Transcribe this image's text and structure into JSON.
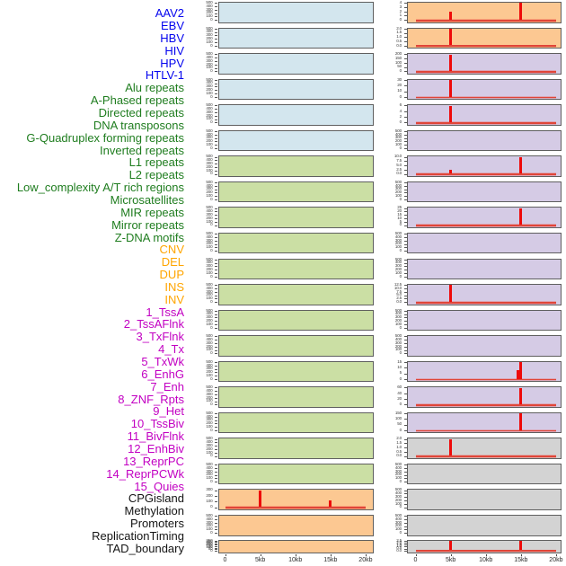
{
  "figure": {
    "description": "Small-multiple density profiles of genomic features, 22 rows x 2 columns",
    "x_axis": {
      "tick_labels": [
        "0",
        "5kb",
        "10kb",
        "15kb",
        "20kb"
      ],
      "range_kb": [
        0,
        20
      ]
    },
    "categories": {
      "virus": {
        "label_color": "#0404ee",
        "panel_color": "#d3e6ee"
      },
      "repeats": {
        "label_color": "#1f7d1f",
        "panel_color": "#cbdfa4"
      },
      "sv": {
        "label_color": "#ffa500",
        "panel_color": "#fcc892"
      },
      "chromatin": {
        "label_color": "#c200c2",
        "panel_color": "#d5cbe5"
      },
      "other": {
        "label_color": "#141414",
        "panel_color": "#d3d3d3"
      }
    },
    "trace_colors": {
      "spike": "#ee0a0a",
      "baseline": "#e04538"
    }
  },
  "chart_data": {
    "type": "line",
    "layout": "small-multiples, 22 rows x 2 columns, column-major feature order",
    "x_range_kb": [
      0,
      20
    ],
    "x_ticks": [
      "0",
      "5kb",
      "10kb",
      "15kb",
      "20kb"
    ],
    "note": "Panels without spikes show an empty default axis (ticks 500-0). Spikes are narrow red peaks on a flat red baseline at y=0.",
    "panels": [
      {
        "label": "AAV2",
        "category": "virus",
        "y_ticks": [
          "500",
          "400",
          "300",
          "200",
          "100",
          "0"
        ],
        "baseline": false,
        "spikes": []
      },
      {
        "label": "EBV",
        "category": "virus",
        "y_ticks": [
          "500",
          "400",
          "300",
          "200",
          "100",
          "0"
        ],
        "baseline": false,
        "spikes": []
      },
      {
        "label": "HBV",
        "category": "virus",
        "y_ticks": [
          "500",
          "400",
          "300",
          "200",
          "100",
          "0"
        ],
        "baseline": false,
        "spikes": []
      },
      {
        "label": "HIV",
        "category": "virus",
        "y_ticks": [
          "500",
          "400",
          "300",
          "200",
          "100",
          "0"
        ],
        "baseline": false,
        "spikes": []
      },
      {
        "label": "HPV",
        "category": "virus",
        "y_ticks": [
          "500",
          "400",
          "300",
          "200",
          "100",
          "0"
        ],
        "baseline": false,
        "spikes": []
      },
      {
        "label": "HTLV-1",
        "category": "virus",
        "y_ticks": [
          "500",
          "400",
          "300",
          "200",
          "100",
          "0"
        ],
        "baseline": false,
        "spikes": []
      },
      {
        "label": "Alu repeats",
        "category": "repeats",
        "y_ticks": [
          "500",
          "400",
          "300",
          "200",
          "100",
          "0"
        ],
        "baseline": false,
        "spikes": []
      },
      {
        "label": "A-Phased repeats",
        "category": "repeats",
        "y_ticks": [
          "500",
          "400",
          "300",
          "200",
          "100",
          "0"
        ],
        "baseline": false,
        "spikes": []
      },
      {
        "label": "Directed repeats",
        "category": "repeats",
        "y_ticks": [
          "500",
          "400",
          "300",
          "200",
          "100",
          "0"
        ],
        "baseline": false,
        "spikes": []
      },
      {
        "label": "DNA transposons",
        "category": "repeats",
        "y_ticks": [
          "500",
          "400",
          "300",
          "200",
          "100",
          "0"
        ],
        "baseline": false,
        "spikes": []
      },
      {
        "label": "G-Quadruplex forming repeats",
        "category": "repeats",
        "y_ticks": [
          "500",
          "400",
          "300",
          "200",
          "100",
          "0"
        ],
        "baseline": false,
        "spikes": []
      },
      {
        "label": "Inverted repeats",
        "category": "repeats",
        "y_ticks": [
          "500",
          "400",
          "300",
          "200",
          "100",
          "0"
        ],
        "baseline": false,
        "spikes": []
      },
      {
        "label": "L1 repeats",
        "category": "repeats",
        "y_ticks": [
          "500",
          "400",
          "300",
          "200",
          "100",
          "0"
        ],
        "baseline": false,
        "spikes": []
      },
      {
        "label": "L2 repeats",
        "category": "repeats",
        "y_ticks": [
          "500",
          "400",
          "300",
          "200",
          "100",
          "0"
        ],
        "baseline": false,
        "spikes": []
      },
      {
        "label": "Low_complexity A/T rich regions",
        "category": "repeats",
        "y_ticks": [
          "500",
          "400",
          "300",
          "200",
          "100",
          "0"
        ],
        "baseline": false,
        "spikes": []
      },
      {
        "label": "Microsatellites",
        "category": "repeats",
        "y_ticks": [
          "500",
          "400",
          "300",
          "200",
          "100",
          "0"
        ],
        "baseline": false,
        "spikes": []
      },
      {
        "label": "MIR repeats",
        "category": "repeats",
        "y_ticks": [
          "500",
          "400",
          "300",
          "200",
          "100",
          "0"
        ],
        "baseline": false,
        "spikes": []
      },
      {
        "label": "Mirror repeats",
        "category": "repeats",
        "y_ticks": [
          "500",
          "400",
          "300",
          "200",
          "100",
          "0"
        ],
        "baseline": false,
        "spikes": []
      },
      {
        "label": "Z-DNA motifs",
        "category": "repeats",
        "y_ticks": [
          "500",
          "400",
          "300",
          "200",
          "100",
          "0"
        ],
        "baseline": false,
        "spikes": []
      },
      {
        "label": "CNV",
        "category": "sv",
        "y_ticks": [
          "300",
          "200",
          "100",
          "0"
        ],
        "baseline": true,
        "spikes": [
          {
            "x_kb": 5,
            "value": 350,
            "frac": 1.0
          },
          {
            "x_kb": 15,
            "value": 130,
            "frac": 0.38
          }
        ]
      },
      {
        "label": "DEL",
        "category": "sv",
        "y_ticks": [
          "500",
          "400",
          "300",
          "200",
          "100",
          "0"
        ],
        "baseline": false,
        "spikes": []
      },
      {
        "label": "DUP",
        "category": "sv",
        "y_ticks": [
          "350",
          "300",
          "250",
          "200",
          "150",
          "100",
          "50",
          "0"
        ],
        "baseline": false,
        "spikes": []
      },
      {
        "label": "INS",
        "category": "sv",
        "y_ticks": [
          "4",
          "3",
          "2",
          "1",
          "0"
        ],
        "baseline": true,
        "spikes": [
          {
            "x_kb": 5,
            "value": 2.2,
            "frac": 0.5
          },
          {
            "x_kb": 15,
            "value": 4.4,
            "frac": 1.0
          }
        ]
      },
      {
        "label": "INV",
        "category": "sv",
        "y_ticks": [
          "2.0",
          "1.5",
          "1.0",
          "0.5",
          "0.0"
        ],
        "baseline": true,
        "spikes": [
          {
            "x_kb": 5,
            "value": 2.1,
            "frac": 1.0
          }
        ]
      },
      {
        "label": "1_TssA",
        "category": "chromatin",
        "y_ticks": [
          "200",
          "150",
          "100",
          "50",
          "0"
        ],
        "baseline": true,
        "spikes": [
          {
            "x_kb": 5,
            "value": 210,
            "frac": 1.0
          }
        ]
      },
      {
        "label": "2_TssAFlnk",
        "category": "chromatin",
        "y_ticks": [
          "30",
          "20",
          "10",
          "0"
        ],
        "baseline": true,
        "spikes": [
          {
            "x_kb": 5,
            "value": 32,
            "frac": 1.0
          }
        ]
      },
      {
        "label": "3_TxFlnk",
        "category": "chromatin",
        "y_ticks": [
          "6",
          "4",
          "2",
          "0"
        ],
        "baseline": true,
        "spikes": [
          {
            "x_kb": 5,
            "value": 6.5,
            "frac": 1.0
          }
        ]
      },
      {
        "label": "4_Tx",
        "category": "chromatin",
        "y_ticks": [
          "500",
          "400",
          "300",
          "200",
          "100",
          "0"
        ],
        "baseline": false,
        "spikes": []
      },
      {
        "label": "5_TxWk",
        "category": "chromatin",
        "y_ticks": [
          "10.0",
          "7.5",
          "5.0",
          "2.5",
          "0.0"
        ],
        "baseline": true,
        "spikes": [
          {
            "x_kb": 5,
            "value": 2.6,
            "frac": 0.25
          },
          {
            "x_kb": 15,
            "value": 10.5,
            "frac": 1.0
          }
        ]
      },
      {
        "label": "6_EnhG",
        "category": "chromatin",
        "y_ticks": [
          "500",
          "400",
          "300",
          "200",
          "100",
          "0"
        ],
        "baseline": false,
        "spikes": []
      },
      {
        "label": "7_Enh",
        "category": "chromatin",
        "y_ticks": [
          "25",
          "20",
          "15",
          "10",
          "5",
          "0"
        ],
        "baseline": true,
        "spikes": [
          {
            "x_kb": 15,
            "value": 26,
            "frac": 1.0
          }
        ]
      },
      {
        "label": "8_ZNF_Rpts",
        "category": "chromatin",
        "y_ticks": [
          "500",
          "400",
          "300",
          "200",
          "100",
          "0"
        ],
        "baseline": false,
        "spikes": []
      },
      {
        "label": "9_Het",
        "category": "chromatin",
        "y_ticks": [
          "500",
          "400",
          "300",
          "200",
          "100",
          "0"
        ],
        "baseline": false,
        "spikes": []
      },
      {
        "label": "10_TssBiv",
        "category": "chromatin",
        "y_ticks": [
          "12.5",
          "10.0",
          "7.5",
          "5.0",
          "2.5",
          "0.0"
        ],
        "baseline": true,
        "spikes": [
          {
            "x_kb": 5,
            "value": 13,
            "frac": 1.0
          }
        ]
      },
      {
        "label": "11_BivFlnk",
        "category": "chromatin",
        "y_ticks": [
          "500",
          "400",
          "300",
          "200",
          "100",
          "0"
        ],
        "baseline": false,
        "spikes": []
      },
      {
        "label": "12_EnhBiv",
        "category": "chromatin",
        "y_ticks": [
          "500",
          "400",
          "300",
          "200",
          "100",
          "0"
        ],
        "baseline": false,
        "spikes": []
      },
      {
        "label": "13_ReprPC",
        "category": "chromatin",
        "y_ticks": [
          "15",
          "10",
          "5",
          "0"
        ],
        "baseline": true,
        "spikes": [
          {
            "x_kb": 14.6,
            "value": 8,
            "frac": 0.5
          },
          {
            "x_kb": 15,
            "value": 16,
            "frac": 1.0
          }
        ]
      },
      {
        "label": "14_ReprPCWk",
        "category": "chromatin",
        "y_ticks": [
          "60",
          "40",
          "20",
          "0"
        ],
        "baseline": true,
        "spikes": [
          {
            "x_kb": 15,
            "value": 63,
            "frac": 1.0
          }
        ]
      },
      {
        "label": "15_Quies",
        "category": "chromatin",
        "y_ticks": [
          "150",
          "100",
          "50",
          "0"
        ],
        "baseline": true,
        "spikes": [
          {
            "x_kb": 15,
            "value": 158,
            "frac": 1.0
          }
        ]
      },
      {
        "label": "CPGisland",
        "category": "other",
        "y_ticks": [
          "2.0",
          "1.5",
          "1.0",
          "0.5",
          "0.0"
        ],
        "baseline": true,
        "spikes": [
          {
            "x_kb": 5,
            "value": 2.1,
            "frac": 1.0
          }
        ]
      },
      {
        "label": "Methylation",
        "category": "other",
        "y_ticks": [
          "500",
          "400",
          "300",
          "200",
          "100",
          "0"
        ],
        "baseline": false,
        "spikes": []
      },
      {
        "label": "Promoters",
        "category": "other",
        "y_ticks": [
          "500",
          "400",
          "300",
          "200",
          "100",
          "0"
        ],
        "baseline": false,
        "spikes": []
      },
      {
        "label": "ReplicationTiming",
        "category": "other",
        "y_ticks": [
          "500",
          "400",
          "300",
          "200",
          "100",
          "0"
        ],
        "baseline": false,
        "spikes": []
      },
      {
        "label": "TAD_boundary",
        "category": "other",
        "y_ticks": [
          "2.5",
          "2.0",
          "1.5",
          "1.0",
          "0.5",
          "0.0"
        ],
        "baseline": true,
        "spikes": [
          {
            "x_kb": 5,
            "value": 2.6,
            "frac": 1.0
          },
          {
            "x_kb": 15,
            "value": 2.6,
            "frac": 1.0
          }
        ]
      }
    ]
  }
}
